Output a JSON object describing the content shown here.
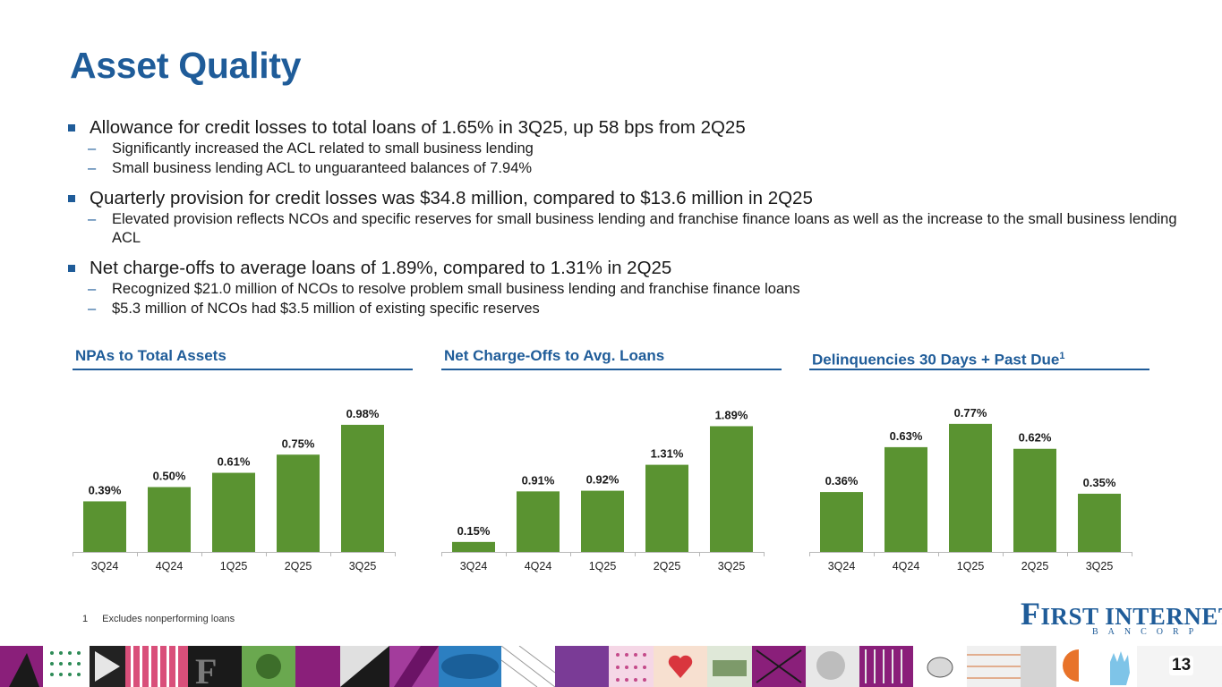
{
  "title": "Asset Quality",
  "bullets": [
    {
      "text": "Allowance for credit losses to total loans of 1.65% in 3Q25, up 58 bps from 2Q25",
      "subs": [
        "Significantly increased the ACL related to small business lending",
        "Small business lending ACL to unguaranteed balances of 7.94%"
      ]
    },
    {
      "text": "Quarterly provision for credit losses was $34.8 million, compared to $13.6 million in 2Q25",
      "subs": [
        "Elevated provision reflects NCOs and specific reserves for small business lending and franchise finance loans as well as the increase to the small business lending ACL"
      ]
    },
    {
      "text": "Net charge-offs to average loans of 1.89%, compared to 1.31% in 2Q25",
      "subs": [
        "Recognized $21.0 million of NCOs to resolve problem small business lending and franchise finance loans",
        "$5.3 million of NCOs had $3.5 million of existing specific reserves"
      ]
    }
  ],
  "chart_data": [
    {
      "type": "bar",
      "title": "NPAs to Total Assets",
      "categories": [
        "3Q24",
        "4Q24",
        "1Q25",
        "2Q25",
        "3Q25"
      ],
      "values": [
        0.39,
        0.5,
        0.61,
        0.75,
        0.98
      ],
      "labels": [
        "0.39%",
        "0.50%",
        "0.61%",
        "0.75%",
        "0.98%"
      ],
      "ylim": [
        0,
        1.0
      ],
      "color": "#5a9331"
    },
    {
      "type": "bar",
      "title": "Net Charge-Offs to Avg. Loans",
      "categories": [
        "3Q24",
        "4Q24",
        "1Q25",
        "2Q25",
        "3Q25"
      ],
      "values": [
        0.15,
        0.91,
        0.92,
        1.31,
        1.89
      ],
      "labels": [
        "0.15%",
        "0.91%",
        "0.92%",
        "1.31%",
        "1.89%"
      ],
      "ylim": [
        0,
        1.95
      ],
      "color": "#5a9331"
    },
    {
      "type": "bar",
      "title": "Delinquencies 30 Days + Past Due",
      "title_superscript": "1",
      "categories": [
        "3Q24",
        "4Q24",
        "1Q25",
        "2Q25",
        "3Q25"
      ],
      "values": [
        0.36,
        0.63,
        0.77,
        0.62,
        0.35
      ],
      "labels": [
        "0.36%",
        "0.63%",
        "0.77%",
        "0.62%",
        "0.35%"
      ],
      "ylim": [
        0,
        0.78
      ],
      "color": "#5a9331"
    }
  ],
  "footnote": {
    "number": "1",
    "text": "Excludes nonperforming loans"
  },
  "logo": {
    "f": "F",
    "main": "IRST INTERNET",
    "sub": "BANCORP"
  },
  "page_number": "13",
  "colors": {
    "accent": "#1f5c99",
    "bar": "#5a9331"
  }
}
